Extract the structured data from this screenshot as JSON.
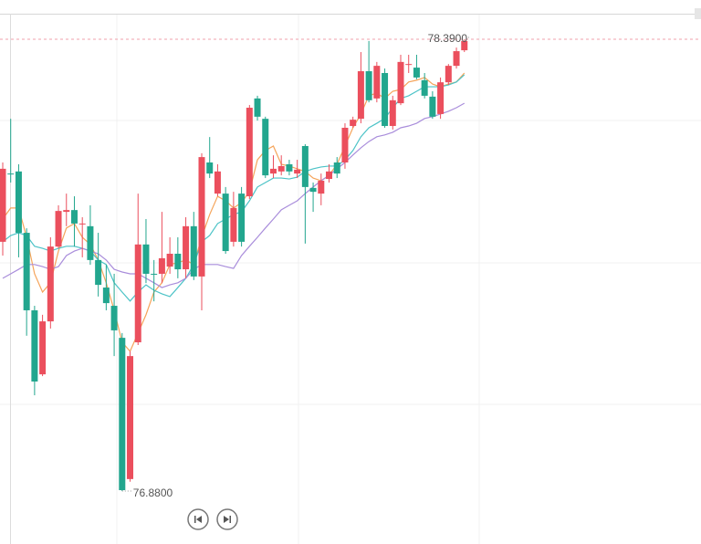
{
  "chart_data": {
    "type": "candlestick",
    "categories": [
      null,
      null,
      null,
      null,
      null,
      null,
      null,
      null,
      null,
      null,
      null,
      null,
      null,
      null,
      null,
      null,
      null,
      null,
      null,
      null,
      null,
      null,
      null,
      null,
      null,
      null,
      null,
      null,
      null,
      null,
      null,
      null,
      null,
      null,
      null,
      null,
      null,
      null,
      null,
      null,
      null,
      null,
      null,
      null,
      null,
      null,
      null,
      null,
      null,
      null,
      null,
      null,
      null,
      null,
      null,
      null,
      null,
      null,
      null
    ],
    "open": [
      77.713,
      77.941,
      77.948,
      77.743,
      77.484,
      77.27,
      77.447,
      77.697,
      77.813,
      77.819,
      77.771,
      77.765,
      77.652,
      77.56,
      77.499,
      77.392,
      76.92,
      77.377,
      77.704,
      77.606,
      77.606,
      77.63,
      77.673,
      77.621,
      77.765,
      77.597,
      77.978,
      77.874,
      77.874,
      77.713,
      77.874,
      77.865,
      78.192,
      78.124,
      77.941,
      77.948,
      77.972,
      77.941,
      78.033,
      77.893,
      77.874,
      77.923,
      77.978,
      77.978,
      78.1,
      78.124,
      78.283,
      78.192,
      78.277,
      78.1,
      78.176,
      78.304,
      78.295,
      78.253,
      78.198,
      78.14,
      78.246,
      78.301,
      78.353
    ],
    "high": [
      77.978,
      78.124,
      77.972,
      77.758,
      77.499,
      77.469,
      77.728,
      77.835,
      77.874,
      77.865,
      77.795,
      77.835,
      77.743,
      77.636,
      77.606,
      77.408,
      77.347,
      77.874,
      77.789,
      77.652,
      77.813,
      77.728,
      77.728,
      77.795,
      77.813,
      78.009,
      78.063,
      77.972,
      77.896,
      77.88,
      77.896,
      78.17,
      78.201,
      78.131,
      78.002,
      78.002,
      77.987,
      77.987,
      78.039,
      77.911,
      77.941,
      77.972,
      77.996,
      78.109,
      78.131,
      78.347,
      78.384,
      78.314,
      78.292,
      78.201,
      78.338,
      78.338,
      78.338,
      78.277,
      78.216,
      78.262,
      78.307,
      78.362,
      78.39
    ],
    "low": [
      77.667,
      77.911,
      77.661,
      77.399,
      77.2,
      77.264,
      77.423,
      77.691,
      77.765,
      77.697,
      77.661,
      77.636,
      77.53,
      77.484,
      77.331,
      76.88,
      76.911,
      77.368,
      77.575,
      77.514,
      77.575,
      77.606,
      77.591,
      77.591,
      77.585,
      77.484,
      77.926,
      77.865,
      77.673,
      77.697,
      77.697,
      77.856,
      78.118,
      77.926,
      77.926,
      77.935,
      77.935,
      77.926,
      77.707,
      77.813,
      77.835,
      77.911,
      77.926,
      77.957,
      78.094,
      78.109,
      78.179,
      78.179,
      78.094,
      78.088,
      78.17,
      78.277,
      78.256,
      78.192,
      78.124,
      78.124,
      78.237,
      78.292,
      78.347
    ],
    "close": [
      77.957,
      77.938,
      77.743,
      77.484,
      77.246,
      77.447,
      77.697,
      77.816,
      77.819,
      77.774,
      77.774,
      77.652,
      77.569,
      77.508,
      77.417,
      76.883,
      77.331,
      77.704,
      77.606,
      77.603,
      77.658,
      77.673,
      77.621,
      77.765,
      77.597,
      77.996,
      77.941,
      77.948,
      77.682,
      77.826,
      77.713,
      78.161,
      78.131,
      77.935,
      77.957,
      77.966,
      77.948,
      77.954,
      77.896,
      77.88,
      77.917,
      77.948,
      77.941,
      78.094,
      78.121,
      78.283,
      78.186,
      78.301,
      78.1,
      78.186,
      78.314,
      78.307,
      78.262,
      78.201,
      78.131,
      78.246,
      78.301,
      78.35,
      78.384
    ],
    "up_color": "#eb4f5d",
    "down_color": "#22a68e",
    "lines": [
      {
        "color": "#f5a45a",
        "values": [
          77.789,
          77.826,
          77.826,
          77.728,
          77.606,
          77.545,
          77.576,
          77.682,
          77.759,
          77.774,
          77.728,
          77.704,
          77.652,
          77.576,
          77.484,
          77.377,
          77.347,
          77.408,
          77.469,
          77.545,
          77.576,
          77.637,
          77.643,
          77.652,
          77.637,
          77.728,
          77.804,
          77.865,
          77.85,
          77.826,
          77.844,
          77.881,
          77.987,
          78.018,
          78.033,
          77.972,
          77.966,
          77.957,
          77.948,
          77.926,
          77.917,
          77.935,
          77.972,
          78.033,
          78.094,
          78.14,
          78.201,
          78.21,
          78.192,
          78.216,
          78.222,
          78.247,
          78.253,
          78.262,
          78.24,
          78.231,
          78.24,
          78.247,
          78.277
        ]
      },
      {
        "color": "#4cc3c7",
        "values": [
          77.713,
          77.734,
          77.743,
          77.734,
          77.698,
          77.691,
          77.682,
          77.691,
          77.698,
          77.698,
          77.691,
          77.682,
          77.652,
          77.637,
          77.576,
          77.545,
          77.515,
          77.545,
          77.569,
          77.551,
          77.539,
          77.53,
          77.56,
          77.591,
          77.637,
          77.713,
          77.734,
          77.774,
          77.789,
          77.804,
          77.813,
          77.85,
          77.896,
          77.911,
          77.926,
          77.926,
          77.923,
          77.929,
          77.948,
          77.957,
          77.963,
          77.966,
          77.966,
          77.987,
          78.018,
          78.064,
          78.094,
          78.109,
          78.125,
          78.161,
          78.192,
          78.201,
          78.216,
          78.231,
          78.231,
          78.231,
          78.237,
          78.247,
          78.271
        ]
      },
      {
        "color": "#a98ddb",
        "values": [
          77.591,
          77.606,
          77.621,
          77.637,
          77.637,
          77.63,
          77.621,
          77.63,
          77.667,
          77.682,
          77.691,
          77.682,
          77.673,
          77.652,
          77.621,
          77.612,
          77.606,
          77.606,
          77.591,
          77.576,
          77.56,
          77.569,
          77.576,
          77.591,
          77.621,
          77.637,
          77.637,
          77.637,
          77.63,
          77.624,
          77.667,
          77.698,
          77.728,
          77.759,
          77.789,
          77.82,
          77.835,
          77.85,
          77.874,
          77.896,
          77.917,
          77.935,
          77.957,
          77.978,
          78.003,
          78.027,
          78.048,
          78.064,
          78.07,
          78.079,
          78.094,
          78.1,
          78.109,
          78.125,
          78.131,
          78.14,
          78.149,
          78.161,
          78.176
        ]
      }
    ],
    "high_marker": {
      "value": 78.39,
      "label": "78.3900"
    },
    "low_marker": {
      "value": 76.88,
      "label": "76.8800"
    },
    "ylim": [
      76.703,
      78.521
    ]
  }
}
